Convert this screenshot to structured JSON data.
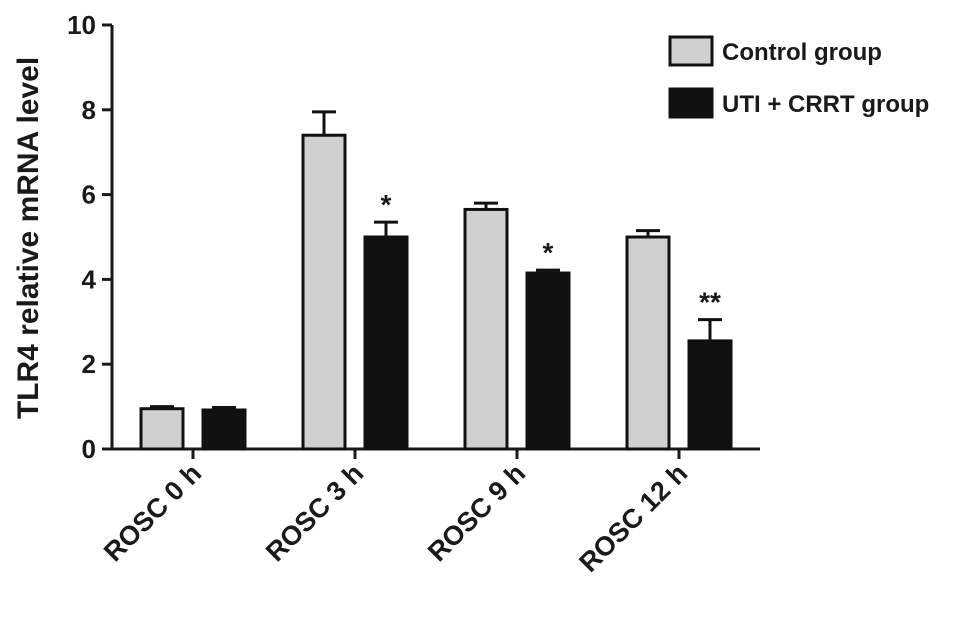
{
  "chart_data": {
    "type": "bar",
    "title": "",
    "xlabel": "",
    "ylabel": "TLR4 relative mRNA level",
    "ylim": [
      0,
      10
    ],
    "yticks": [
      "0",
      "2",
      "4",
      "6",
      "8",
      "10"
    ],
    "categories": [
      "ROSC 0 h",
      "ROSC 3 h",
      "ROSC 9 h",
      "ROSC 12 h"
    ],
    "series": [
      {
        "name": "Control group",
        "values": [
          0.95,
          7.4,
          5.65,
          5.0
        ],
        "errors": [
          0.05,
          0.55,
          0.15,
          0.15
        ],
        "color": "#d0d0d0"
      },
      {
        "name": "UTI + CRRT group",
        "values": [
          0.92,
          5.0,
          4.15,
          2.55
        ],
        "errors": [
          0.06,
          0.35,
          0.07,
          0.5
        ],
        "color": "#111111"
      }
    ],
    "significance": [
      "",
      "*",
      "*",
      "**"
    ],
    "legend": "top-right",
    "grid": false
  }
}
